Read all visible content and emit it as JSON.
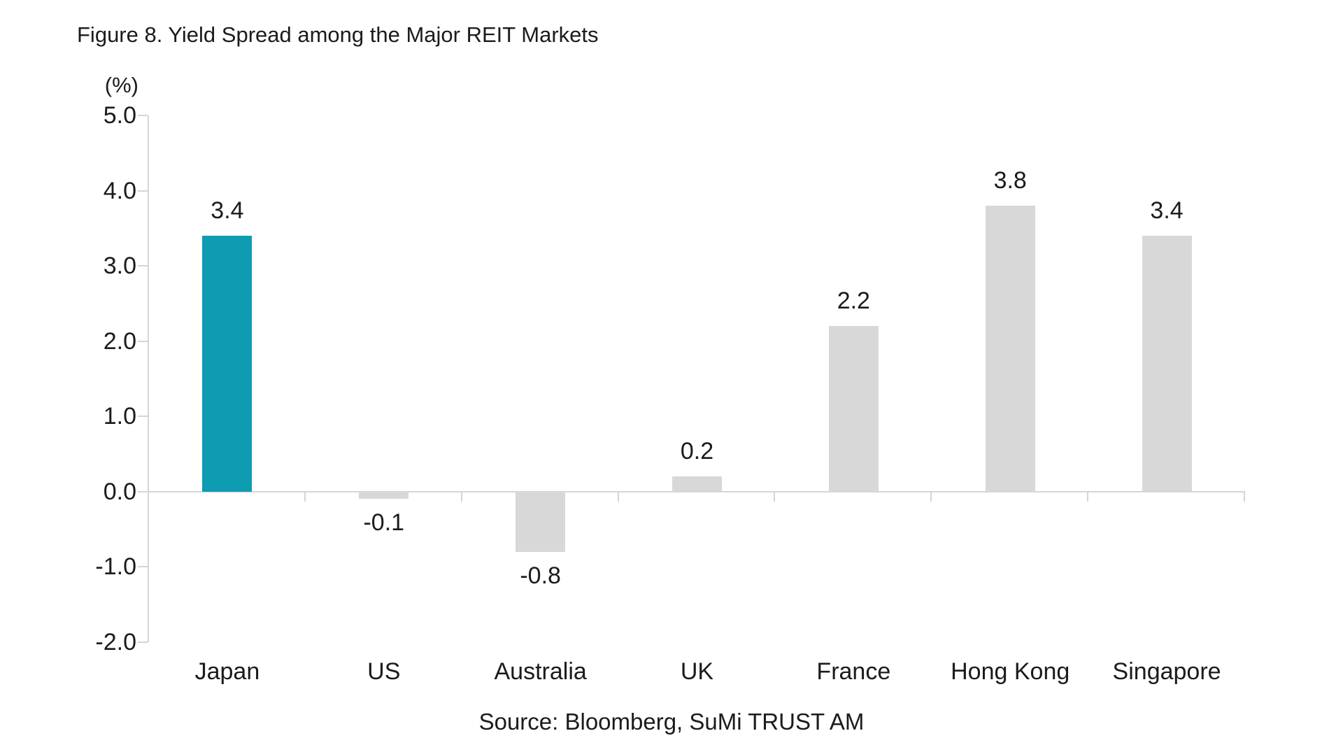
{
  "chart_data": {
    "type": "bar",
    "title": "Figure 8. Yield Spread among the Major REIT Markets",
    "unit": "(%)",
    "source": "Source: Bloomberg, SuMi TRUST AM",
    "categories": [
      "Japan",
      "US",
      "Australia",
      "UK",
      "France",
      "Hong Kong",
      "Singapore"
    ],
    "values": [
      3.4,
      -0.1,
      -0.8,
      0.2,
      2.2,
      3.8,
      3.4
    ],
    "value_labels": [
      "3.4",
      "-0.1",
      "-0.8",
      "0.2",
      "2.2",
      "3.8",
      "3.4"
    ],
    "ylim": [
      -2.0,
      5.0
    ],
    "ytick_step": 1.0,
    "ytick_labels": [
      "5.0",
      "4.0",
      "3.0",
      "2.0",
      "1.0",
      "0.0",
      "-1.0",
      "-2.0"
    ],
    "grid": false,
    "legend": "none",
    "highlight_index": 0,
    "colors": {
      "highlight_bar": "#0d9cb2",
      "default_bar": "#d8d8d8",
      "axis_line": "#d5d5d5",
      "text": "#1b1b1f"
    }
  }
}
